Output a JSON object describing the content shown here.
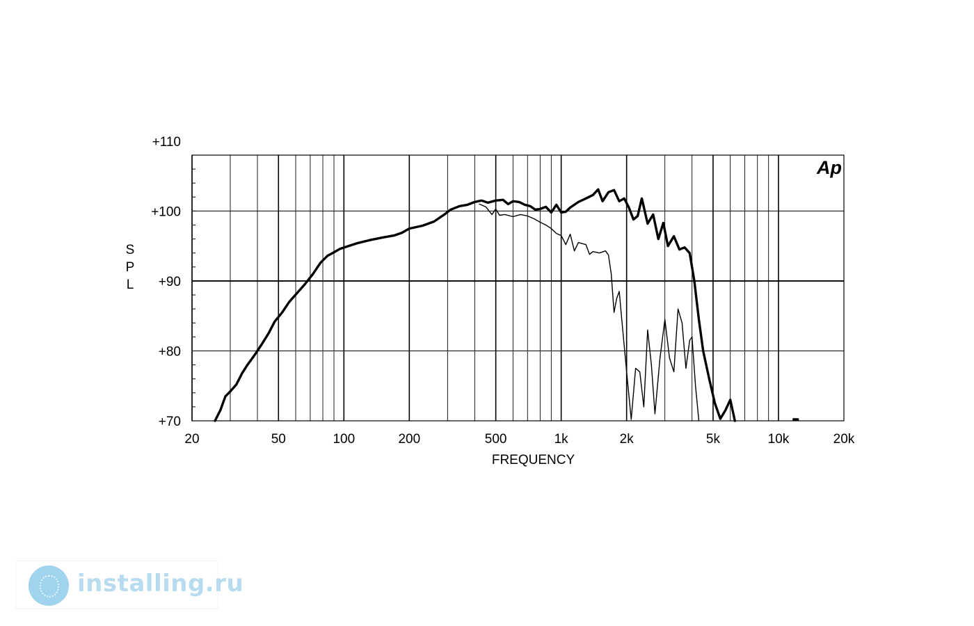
{
  "chart_data": {
    "type": "line",
    "xlabel": "FREQUENCY",
    "ylabel": "SPL",
    "xscale": "log",
    "xlim": [
      20,
      20000
    ],
    "ylim": [
      70,
      110
    ],
    "grid": true,
    "logo_text": "Ap",
    "x_tick_labels": [
      "20",
      "50",
      "100",
      "200",
      "500",
      "1k",
      "2k",
      "5k",
      "10k",
      "20k"
    ],
    "x_tick_values": [
      20,
      50,
      100,
      200,
      500,
      1000,
      2000,
      5000,
      10000,
      20000
    ],
    "y_tick_labels": [
      "+110",
      "+100",
      "+90",
      "+80",
      "+70"
    ],
    "y_tick_values": [
      110,
      100,
      90,
      80,
      70
    ],
    "series": [
      {
        "style": "thick",
        "points": [
          [
            25.5,
            70.0
          ],
          [
            27,
            71.5
          ],
          [
            28.5,
            73.5
          ],
          [
            30,
            74.2
          ],
          [
            32,
            75.2
          ],
          [
            34,
            76.8
          ],
          [
            36,
            78.0
          ],
          [
            39,
            79.5
          ],
          [
            42,
            81.0
          ],
          [
            45,
            82.5
          ],
          [
            48,
            84.2
          ],
          [
            52,
            85.5
          ],
          [
            56,
            87.0
          ],
          [
            61,
            88.3
          ],
          [
            66,
            89.5
          ],
          [
            72,
            91.0
          ],
          [
            78,
            92.6
          ],
          [
            84,
            93.6
          ],
          [
            90,
            94.1
          ],
          [
            96,
            94.6
          ],
          [
            105,
            95.0
          ],
          [
            115,
            95.4
          ],
          [
            130,
            95.8
          ],
          [
            150,
            96.2
          ],
          [
            170,
            96.5
          ],
          [
            185,
            96.9
          ],
          [
            200,
            97.5
          ],
          [
            230,
            97.9
          ],
          [
            260,
            98.5
          ],
          [
            290,
            99.5
          ],
          [
            310,
            100.2
          ],
          [
            340,
            100.7
          ],
          [
            370,
            100.9
          ],
          [
            400,
            101.3
          ],
          [
            430,
            101.5
          ],
          [
            460,
            101.2
          ],
          [
            500,
            101.5
          ],
          [
            540,
            101.6
          ],
          [
            570,
            101.0
          ],
          [
            600,
            101.4
          ],
          [
            640,
            101.3
          ],
          [
            680,
            100.9
          ],
          [
            720,
            100.7
          ],
          [
            760,
            100.2
          ],
          [
            800,
            100.3
          ],
          [
            850,
            100.6
          ],
          [
            900,
            99.8
          ],
          [
            950,
            100.9
          ],
          [
            1000,
            99.8
          ],
          [
            1050,
            99.9
          ],
          [
            1100,
            100.5
          ],
          [
            1200,
            101.3
          ],
          [
            1300,
            101.8
          ],
          [
            1400,
            102.3
          ],
          [
            1480,
            103.1
          ],
          [
            1550,
            101.4
          ],
          [
            1650,
            102.7
          ],
          [
            1750,
            103.0
          ],
          [
            1850,
            101.4
          ],
          [
            1950,
            101.8
          ],
          [
            2050,
            100.5
          ],
          [
            2150,
            98.8
          ],
          [
            2250,
            99.3
          ],
          [
            2350,
            101.8
          ],
          [
            2500,
            98.2
          ],
          [
            2650,
            99.5
          ],
          [
            2800,
            96.0
          ],
          [
            2950,
            98.3
          ],
          [
            3100,
            95.0
          ],
          [
            3300,
            96.4
          ],
          [
            3500,
            94.5
          ],
          [
            3700,
            94.8
          ],
          [
            3900,
            94.0
          ],
          [
            4100,
            90.0
          ],
          [
            4300,
            84.5
          ],
          [
            4500,
            80.0
          ],
          [
            4800,
            76.0
          ],
          [
            5100,
            72.5
          ],
          [
            5400,
            70.3
          ],
          [
            5700,
            71.5
          ],
          [
            6000,
            73.0
          ],
          [
            6300,
            70.0
          ]
        ]
      },
      {
        "style": "thin",
        "points": [
          [
            420,
            101.0
          ],
          [
            450,
            100.6
          ],
          [
            480,
            99.5
          ],
          [
            500,
            100.3
          ],
          [
            520,
            99.4
          ],
          [
            550,
            99.5
          ],
          [
            600,
            99.2
          ],
          [
            650,
            99.5
          ],
          [
            700,
            99.3
          ],
          [
            750,
            98.9
          ],
          [
            800,
            98.4
          ],
          [
            850,
            98.0
          ],
          [
            900,
            97.5
          ],
          [
            950,
            96.8
          ],
          [
            1000,
            96.5
          ],
          [
            1050,
            95.2
          ],
          [
            1100,
            96.7
          ],
          [
            1150,
            94.3
          ],
          [
            1200,
            95.5
          ],
          [
            1300,
            95.2
          ],
          [
            1350,
            93.8
          ],
          [
            1400,
            94.2
          ],
          [
            1500,
            94.0
          ],
          [
            1600,
            94.3
          ],
          [
            1650,
            93.7
          ],
          [
            1700,
            91.0
          ],
          [
            1750,
            85.5
          ],
          [
            1800,
            87.5
          ],
          [
            1850,
            88.5
          ],
          [
            1900,
            84.5
          ],
          [
            2000,
            77.0
          ],
          [
            2100,
            70.2
          ],
          [
            2200,
            77.5
          ],
          [
            2300,
            77.0
          ],
          [
            2400,
            72.0
          ],
          [
            2500,
            83.0
          ],
          [
            2600,
            78.0
          ],
          [
            2700,
            71.0
          ],
          [
            2850,
            79.0
          ],
          [
            3000,
            84.5
          ],
          [
            3150,
            79.0
          ],
          [
            3300,
            77.0
          ],
          [
            3450,
            86.0
          ],
          [
            3600,
            84.0
          ],
          [
            3750,
            77.5
          ],
          [
            3900,
            81.5
          ],
          [
            4000,
            82.0
          ],
          [
            4150,
            75.0
          ],
          [
            4300,
            70.0
          ]
        ]
      }
    ],
    "marker_points": [
      [
        12000,
        70.1
      ]
    ]
  },
  "watermark": {
    "text": "installing.ru",
    "icon": "globe-icon",
    "color": "#9fd3ee"
  }
}
